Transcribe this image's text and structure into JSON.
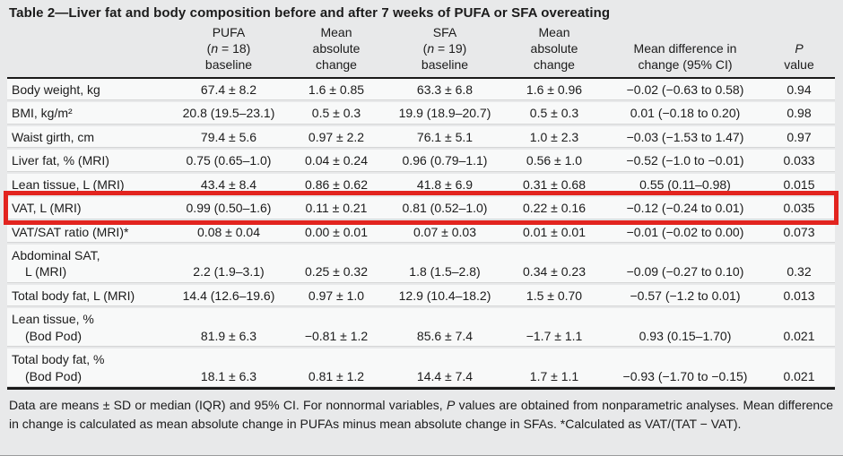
{
  "title": "Table 2—Liver fat and body composition before and after 7 weeks of PUFA or SFA overeating",
  "highlight_color": "#e2241f",
  "table": {
    "columns": [
      {
        "id": "parameter",
        "lines": [
          ""
        ]
      },
      {
        "id": "pufa-baseline",
        "lines": [
          "PUFA",
          "(n = 18)",
          "baseline"
        ]
      },
      {
        "id": "pufa-mean-absolute-change",
        "lines": [
          "Mean",
          "absolute",
          "change"
        ]
      },
      {
        "id": "sfa-baseline",
        "lines": [
          "SFA",
          "(n = 19)",
          "baseline"
        ]
      },
      {
        "id": "sfa-mean-absolute-change",
        "lines": [
          "Mean",
          "absolute",
          "change"
        ]
      },
      {
        "id": "mean-difference-in-change",
        "lines": [
          "Mean difference in",
          "change (95% CI)"
        ]
      },
      {
        "id": "p-value",
        "lines": [
          "P",
          "value"
        ]
      }
    ],
    "rows": [
      {
        "label": [
          "Body weight, kg"
        ],
        "values": [
          "67.4 ± 8.2",
          "1.6 ± 0.85",
          "63.3 ± 6.8",
          "1.6 ± 0.96",
          "−0.02 (−0.63 to 0.58)",
          "0.94"
        ],
        "highlight": false
      },
      {
        "label": [
          "BMI, kg/m²"
        ],
        "values": [
          "20.8 (19.5–23.1)",
          "0.5 ± 0.3",
          "19.9 (18.9–20.7)",
          "0.5 ± 0.3",
          "0.01 (−0.18 to 0.20)",
          "0.98"
        ],
        "highlight": false
      },
      {
        "label": [
          "Waist girth, cm"
        ],
        "values": [
          "79.4 ± 5.6",
          "0.97 ± 2.2",
          "76.1 ± 5.1",
          "1.0 ± 2.3",
          "−0.03 (−1.53 to 1.47)",
          "0.97"
        ],
        "highlight": false
      },
      {
        "label": [
          "Liver fat, % (MRI)"
        ],
        "values": [
          "0.75 (0.65–1.0)",
          "0.04 ± 0.24",
          "0.96 (0.79–1.1)",
          "0.56 ± 1.0",
          "−0.52 (−1.0 to −0.01)",
          "0.033"
        ],
        "highlight": false
      },
      {
        "label": [
          "Lean tissue, L (MRI)"
        ],
        "values": [
          "43.4 ± 8.4",
          "0.86 ± 0.62",
          "41.8 ± 6.9",
          "0.31 ± 0.68",
          "0.55 (0.11–0.98)",
          "0.015"
        ],
        "highlight": false
      },
      {
        "label": [
          "VAT, L (MRI)"
        ],
        "values": [
          "0.99 (0.50–1.6)",
          "0.11 ± 0.21",
          "0.81 (0.52–1.0)",
          "0.22 ± 0.16",
          "−0.12 (−0.24 to 0.01)",
          "0.035"
        ],
        "highlight": true
      },
      {
        "label": [
          "VAT/SAT ratio (MRI)*"
        ],
        "values": [
          "0.08 ± 0.04",
          "0.00 ± 0.01",
          "0.07 ± 0.03",
          "0.01 ± 0.01",
          "−0.01 (−0.02 to 0.00)",
          "0.073"
        ],
        "highlight": false
      },
      {
        "label": [
          "Abdominal SAT,",
          "L (MRI)"
        ],
        "values": [
          "2.2 (1.9–3.1)",
          "0.25 ± 0.32",
          "1.8 (1.5–2.8)",
          "0.34 ± 0.23",
          "−0.09 (−0.27 to 0.10)",
          "0.32"
        ],
        "highlight": false
      },
      {
        "label": [
          "Total body fat, L (MRI)"
        ],
        "values": [
          "14.4 (12.6–19.6)",
          "0.97 ± 1.0",
          "12.9 (10.4–18.2)",
          "1.5 ± 0.70",
          "−0.57 (−1.2 to 0.01)",
          "0.013"
        ],
        "highlight": false
      },
      {
        "label": [
          "Lean tissue, %",
          "(Bod Pod)"
        ],
        "values": [
          "81.9 ± 6.3",
          "−0.81 ± 1.2",
          "85.6 ± 7.4",
          "−1.7 ± 1.1",
          "0.93 (0.15–1.70)",
          "0.021"
        ],
        "highlight": false
      },
      {
        "label": [
          "Total body fat, %",
          "(Bod Pod)"
        ],
        "values": [
          "18.1 ± 6.3",
          "0.81 ± 1.2",
          "14.4 ± 7.4",
          "1.7 ± 1.1",
          "−0.93 (−1.70 to −0.15)",
          "0.021"
        ],
        "highlight": false
      }
    ]
  },
  "footnote": "Data are means ± SD or median (IQR) and 95% CI. For nonnormal variables, P values are obtained from nonparametric analyses. Mean difference in change is calculated as mean absolute change in PUFAs minus mean absolute change in SFAs. *Calculated as VAT/(TAT − VAT)."
}
